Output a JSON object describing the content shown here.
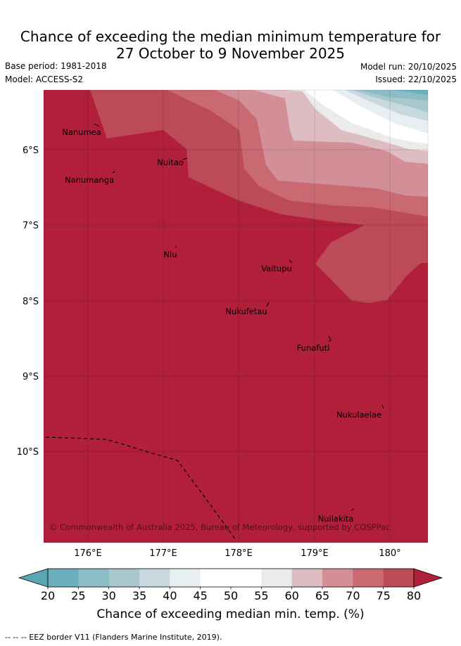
{
  "title_line1": "Chance of exceeding the median minimum temperature for",
  "title_line2": "27 October to 9 November 2025",
  "meta": {
    "base_period": "Base period: 1981-2018",
    "model": "Model: ACCESS-S2",
    "model_run": "Model run: 20/10/2025",
    "issued": "Issued: 22/10/2025"
  },
  "map": {
    "lat_ticks": [
      "6°S",
      "7°S",
      "8°S",
      "9°S",
      "10°S"
    ],
    "lon_ticks": [
      "176°E",
      "177°E",
      "178°E",
      "179°E",
      "180°"
    ],
    "islands": [
      {
        "name": "Nanumea"
      },
      {
        "name": "Nuitao"
      },
      {
        "name": "Nanumanga"
      },
      {
        "name": "Niu"
      },
      {
        "name": "Vaitupu"
      },
      {
        "name": "Nukufetau"
      },
      {
        "name": "Funafuti"
      },
      {
        "name": "Nukulaelae"
      },
      {
        "name": "Nuilakita"
      }
    ],
    "copyright": "© Commonwealth of Australia 2025, Bureau of Meteorology, supported by COSPPac"
  },
  "colorbar": {
    "ticks": [
      "20",
      "25",
      "30",
      "35",
      "40",
      "45",
      "50",
      "55",
      "60",
      "65",
      "70",
      "75",
      "80"
    ],
    "colors": [
      "#6aafbb",
      "#8cbcc5",
      "#a9c8ce",
      "#c9d8de",
      "#e8eff2",
      "#ffffff",
      "#ffffff",
      "#ebebeb",
      "#ddbcc2",
      "#d38f98",
      "#c96a73",
      "#bd4a57"
    ],
    "under_color": "#5aa6b3",
    "over_color": "#b21f3b",
    "label": "Chance of exceeding median min. temp. (%)"
  },
  "footer": "-- -- -- EEZ border V11 (Flanders Marine Institute, 2019)."
}
